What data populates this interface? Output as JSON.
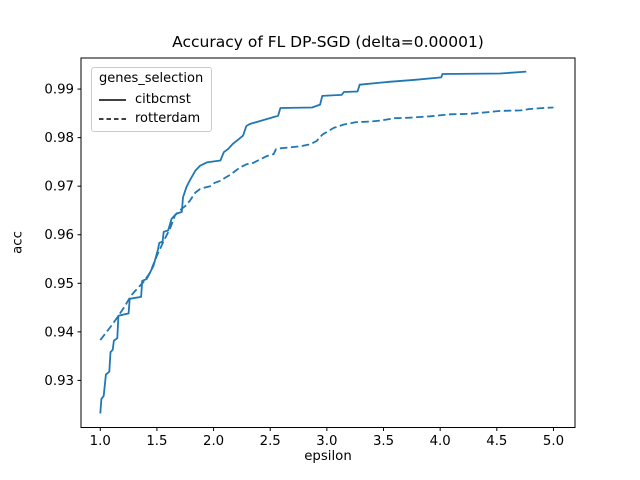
{
  "figure": {
    "title": "Accuracy of FL DP-SGD (delta=0.00001)",
    "xlabel": "epsilon",
    "ylabel": "acc"
  },
  "legend": {
    "title": "genes_selection",
    "entries": [
      {
        "label": "citbcmst",
        "line_style": "solid"
      },
      {
        "label": "rotterdam",
        "line_style": "dashed"
      }
    ],
    "sample_line_color": "#262626"
  },
  "chart_data": {
    "type": "line",
    "title": "Accuracy of FL DP-SGD (delta=0.00001)",
    "xlabel": "epsilon",
    "ylabel": "acc",
    "xlim": [
      0.83,
      5.19
    ],
    "ylim": [
      0.9203,
      0.9964
    ],
    "x_ticks": [
      1.0,
      1.5,
      2.0,
      2.5,
      3.0,
      3.5,
      4.0,
      4.5,
      5.0
    ],
    "y_ticks": [
      0.93,
      0.94,
      0.95,
      0.96,
      0.97,
      0.98,
      0.99
    ],
    "grid": false,
    "legend_position": "upper left",
    "line_color": "#1f77b4",
    "series": [
      {
        "name": "citbcmst",
        "style": "solid",
        "points": [
          [
            1.0,
            0.9232
          ],
          [
            1.01,
            0.9262
          ],
          [
            1.03,
            0.9268
          ],
          [
            1.05,
            0.9312
          ],
          [
            1.08,
            0.9318
          ],
          [
            1.09,
            0.9358
          ],
          [
            1.11,
            0.9363
          ],
          [
            1.12,
            0.9382
          ],
          [
            1.15,
            0.9387
          ],
          [
            1.16,
            0.9433
          ],
          [
            1.25,
            0.9438
          ],
          [
            1.26,
            0.9468
          ],
          [
            1.36,
            0.9472
          ],
          [
            1.37,
            0.9505
          ],
          [
            1.41,
            0.9509
          ],
          [
            1.47,
            0.9536
          ],
          [
            1.51,
            0.957
          ],
          [
            1.52,
            0.9583
          ],
          [
            1.55,
            0.9586
          ],
          [
            1.56,
            0.9606
          ],
          [
            1.6,
            0.9609
          ],
          [
            1.63,
            0.9633
          ],
          [
            1.67,
            0.9643
          ],
          [
            1.72,
            0.9647
          ],
          [
            1.73,
            0.9677
          ],
          [
            1.76,
            0.9698
          ],
          [
            1.79,
            0.9712
          ],
          [
            1.84,
            0.9732
          ],
          [
            1.88,
            0.9742
          ],
          [
            1.94,
            0.9749
          ],
          [
            2.06,
            0.9753
          ],
          [
            2.09,
            0.977
          ],
          [
            2.13,
            0.9777
          ],
          [
            2.17,
            0.9787
          ],
          [
            2.26,
            0.9804
          ],
          [
            2.29,
            0.9824
          ],
          [
            2.32,
            0.9828
          ],
          [
            2.57,
            0.9845
          ],
          [
            2.59,
            0.9861
          ],
          [
            2.87,
            0.9862
          ],
          [
            2.94,
            0.9868
          ],
          [
            2.96,
            0.9886
          ],
          [
            3.13,
            0.9888
          ],
          [
            3.15,
            0.9894
          ],
          [
            3.27,
            0.9895
          ],
          [
            3.29,
            0.9909
          ],
          [
            3.55,
            0.9915
          ],
          [
            3.78,
            0.9919
          ],
          [
            4.01,
            0.9924
          ],
          [
            4.02,
            0.9931
          ],
          [
            4.53,
            0.9932
          ],
          [
            4.76,
            0.9936
          ]
        ]
      },
      {
        "name": "rotterdam",
        "style": "dashed",
        "points": [
          [
            1.0,
            0.9383
          ],
          [
            1.05,
            0.9398
          ],
          [
            1.1,
            0.9413
          ],
          [
            1.13,
            0.9423
          ],
          [
            1.18,
            0.944
          ],
          [
            1.22,
            0.9454
          ],
          [
            1.26,
            0.947
          ],
          [
            1.28,
            0.9477
          ],
          [
            1.33,
            0.949
          ],
          [
            1.38,
            0.9502
          ],
          [
            1.44,
            0.9522
          ],
          [
            1.5,
            0.9557
          ],
          [
            1.56,
            0.9587
          ],
          [
            1.62,
            0.9615
          ],
          [
            1.66,
            0.964
          ],
          [
            1.7,
            0.965
          ],
          [
            1.75,
            0.9659
          ],
          [
            1.79,
            0.967
          ],
          [
            1.84,
            0.9687
          ],
          [
            1.88,
            0.9694
          ],
          [
            1.92,
            0.9697
          ],
          [
            1.97,
            0.97
          ],
          [
            2.01,
            0.9707
          ],
          [
            2.06,
            0.9711
          ],
          [
            2.1,
            0.9717
          ],
          [
            2.15,
            0.9724
          ],
          [
            2.19,
            0.9731
          ],
          [
            2.23,
            0.9738
          ],
          [
            2.29,
            0.9745
          ],
          [
            2.35,
            0.9748
          ],
          [
            2.41,
            0.9755
          ],
          [
            2.47,
            0.9762
          ],
          [
            2.53,
            0.9766
          ],
          [
            2.55,
            0.9776
          ],
          [
            2.59,
            0.9778
          ],
          [
            2.68,
            0.978
          ],
          [
            2.76,
            0.9782
          ],
          [
            2.85,
            0.9786
          ],
          [
            2.91,
            0.9793
          ],
          [
            2.96,
            0.9806
          ],
          [
            3.06,
            0.982
          ],
          [
            3.15,
            0.9827
          ],
          [
            3.26,
            0.9832
          ],
          [
            3.38,
            0.9833
          ],
          [
            3.47,
            0.9835
          ],
          [
            3.6,
            0.984
          ],
          [
            3.73,
            0.9841
          ],
          [
            3.91,
            0.9844
          ],
          [
            4.09,
            0.9848
          ],
          [
            4.26,
            0.9849
          ],
          [
            4.35,
            0.9851
          ],
          [
            4.53,
            0.9855
          ],
          [
            4.71,
            0.9856
          ],
          [
            4.79,
            0.9859
          ],
          [
            4.91,
            0.9861
          ],
          [
            5.0,
            0.9862
          ]
        ]
      }
    ]
  }
}
